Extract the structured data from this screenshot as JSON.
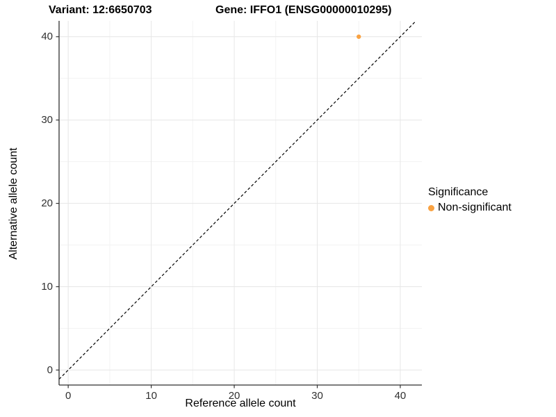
{
  "chart_data": {
    "type": "scatter",
    "title_left": "Variant: 12:6650703",
    "title_right": "Gene: IFFO1 (ENSG00000010295)",
    "xlabel": "Reference allele count",
    "ylabel": "Alternative allele count",
    "xlim": [
      -1.1,
      42.6
    ],
    "ylim": [
      -1.8,
      41.9
    ],
    "x_breaks": [
      0,
      10,
      20,
      30,
      40
    ],
    "y_breaks": [
      0,
      10,
      20,
      30,
      40
    ],
    "x_minor_breaks": [
      5,
      15,
      25,
      35
    ],
    "y_minor_breaks": [
      5,
      15,
      25,
      35
    ],
    "grid": true,
    "points": [
      {
        "x": 35,
        "y": 40,
        "series": "Non-significant"
      }
    ],
    "abline": {
      "type": "identity",
      "style": "dashed"
    },
    "legend": {
      "position": "right",
      "title": "Significance",
      "items": [
        {
          "label": "Non-significant",
          "color": "#F9A242"
        }
      ]
    },
    "colors": {
      "point": "#F9A242",
      "grid_major": "#E6E6E6",
      "grid_minor": "#F3F3F3",
      "axis_line": "#2F2F2F",
      "abline": "#000000",
      "tick_mark": "#333333"
    }
  }
}
